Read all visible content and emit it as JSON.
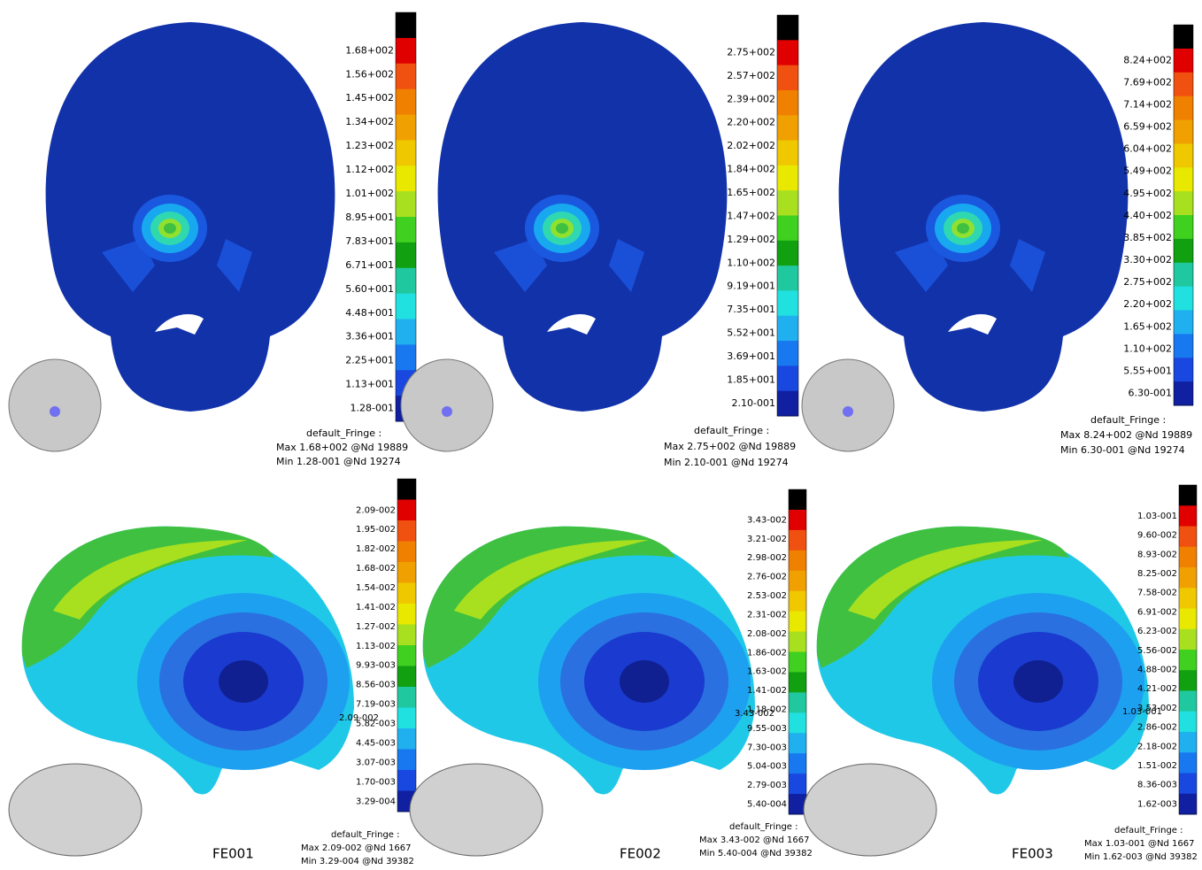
{
  "colormap": [
    "#000000",
    "#e00000",
    "#f05010",
    "#f08000",
    "#f0a000",
    "#f0c800",
    "#e8e800",
    "#a8e020",
    "#40d020",
    "#10a010",
    "#20c8a0",
    "#20e0e0",
    "#20b0f0",
    "#1878f0",
    "#1848e0",
    "#1020a0"
  ],
  "panels": [
    {
      "legend": [
        "1.68+002",
        "1.56+002",
        "1.45+002",
        "1.34+002",
        "1.23+002",
        "1.12+002",
        "1.01+002",
        "8.95+001",
        "7.83+001",
        "6.71+001",
        "5.60+001",
        "4.48+001",
        "3.36+001",
        "2.25+001",
        "1.13+001",
        "1.28-001"
      ],
      "fringe_title": "default_Fringe :",
      "max": "Max 1.68+002 @Nd 19889",
      "min": "Min 1.28-001 @Nd 19274"
    },
    {
      "legend": [
        "2.75+002",
        "2.57+002",
        "2.39+002",
        "2.20+002",
        "2.02+002",
        "1.84+002",
        "1.65+002",
        "1.47+002",
        "1.29+002",
        "1.10+002",
        "9.19+001",
        "7.35+001",
        "5.52+001",
        "3.69+001",
        "1.85+001",
        "2.10-001"
      ],
      "fringe_title": "default_Fringe :",
      "max": "Max 2.75+002 @Nd 19889",
      "min": "Min 2.10-001 @Nd 19274"
    },
    {
      "legend": [
        "8.24+002",
        "7.69+002",
        "7.14+002",
        "6.59+002",
        "6.04+002",
        "5.49+002",
        "4.95+002",
        "4.40+002",
        "3.85+002",
        "3.30+002",
        "2.75+002",
        "2.20+002",
        "1.65+002",
        "1.10+002",
        "5.55+001",
        "6.30-001"
      ],
      "fringe_title": "default_Fringe :",
      "max": "Max 8.24+002 @Nd 19889",
      "min": "Min 6.30-001 @Nd 19274"
    },
    {
      "legend": [
        "2.09-002",
        "1.95-002",
        "1.82-002",
        "1.68-002",
        "1.54-002",
        "1.41-002",
        "1.27-002",
        "1.13-002",
        "9.93-003",
        "8.56-003",
        "7.19-003",
        "5.82-003",
        "4.45-003",
        "3.07-003",
        "1.70-003",
        "3.29-004"
      ],
      "fringe_title": "default_Fringe :",
      "max": "Max 2.09-002 @Nd 1667",
      "min": "Min 3.29-004 @Nd 39382",
      "annotation": "2.09-002",
      "label": "FE001"
    },
    {
      "legend": [
        "3.43-002",
        "3.21-002",
        "2.98-002",
        "2.76-002",
        "2.53-002",
        "2.31-002",
        "2.08-002",
        "1.86-002",
        "1.63-002",
        "1.41-002",
        "1.18-002",
        "9.55-003",
        "7.30-003",
        "5.04-003",
        "2.79-003",
        "5.40-004"
      ],
      "fringe_title": "default_Fringe :",
      "max": "Max 3.43-002 @Nd 1667",
      "min": "Min 5.40-004 @Nd 39382",
      "annotation": "3.43-002",
      "label": "FE002"
    },
    {
      "legend": [
        "1.03-001",
        "9.60-002",
        "8.93-002",
        "8.25-002",
        "7.58-002",
        "6.91-002",
        "6.23-002",
        "5.56-002",
        "4.88-002",
        "4.21-002",
        "3.53-002",
        "2.86-002",
        "2.18-002",
        "1.51-002",
        "8.36-003",
        "1.62-003"
      ],
      "fringe_title": "default_Fringe :",
      "max": "Max 1.03-001 @Nd 1667",
      "min": "Min 1.62-003 @Nd 39382",
      "annotation": "1.03-001",
      "label": "FE003"
    }
  ]
}
